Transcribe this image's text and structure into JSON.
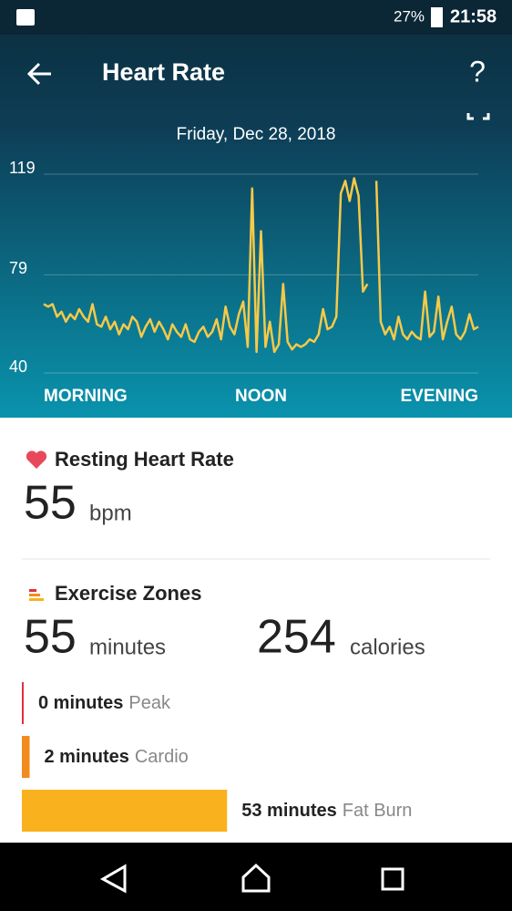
{
  "status_bar": {
    "battery": "27%",
    "time": "21:58"
  },
  "header": {
    "title": "Heart Rate",
    "help": "?"
  },
  "chart_data": {
    "type": "line",
    "subtitle": "Friday, Dec 28, 2018",
    "values": [
      67,
      66,
      67,
      62,
      64,
      60,
      63,
      61,
      65,
      62,
      60,
      67,
      59,
      58,
      62,
      57,
      60,
      55,
      59,
      57,
      62,
      60,
      54,
      58,
      61,
      56,
      60,
      57,
      53,
      59,
      56,
      54,
      59,
      53,
      52,
      56,
      58,
      54,
      56,
      61,
      53,
      66,
      58,
      55,
      63,
      68,
      50,
      113,
      48,
      96,
      50,
      60,
      48,
      51,
      75,
      52,
      49,
      51,
      50,
      51,
      53,
      52,
      55,
      65,
      57,
      58,
      62,
      111,
      116,
      108,
      117,
      110,
      72,
      75,
      null,
      116,
      60,
      55,
      58,
      53,
      62,
      55,
      53,
      56,
      54,
      53,
      72,
      54,
      56,
      70,
      53,
      60,
      66,
      55,
      53,
      56,
      63,
      57,
      58
    ],
    "color": "#f7c948",
    "ylim": [
      40,
      119
    ],
    "yticks": [
      40,
      79,
      119
    ],
    "grid": true,
    "x_labels": [
      "MORNING",
      "NOON",
      "EVENING"
    ]
  },
  "resting": {
    "title": "Resting Heart Rate",
    "value": 55,
    "unit": "bpm"
  },
  "zones": {
    "title": "Exercise Zones",
    "minutes": 55,
    "minutes_unit": "minutes",
    "calories": 254,
    "calories_unit": "calories",
    "values": [
      0,
      2,
      53
    ],
    "value_labels": [
      "0 minutes",
      "2 minutes",
      "53 minutes"
    ],
    "names": [
      "Peak",
      "Cardio",
      "Fat Burn"
    ],
    "colors": [
      "#e0313a",
      "#f28b1e",
      "#f9b21d"
    ]
  }
}
